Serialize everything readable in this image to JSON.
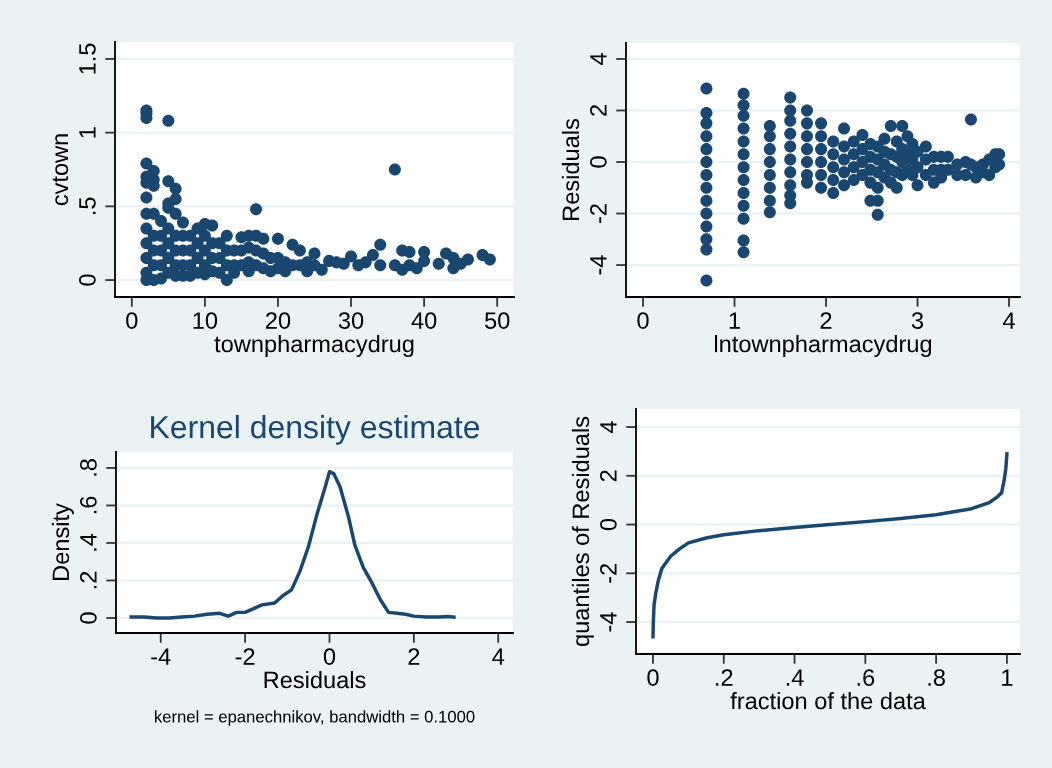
{
  "chart_data": [
    {
      "type": "scatter",
      "xlabel": "townpharmacydrug",
      "ylabel": "cvtown",
      "xlim": [
        -2.3,
        52.3
      ],
      "ylim": [
        -0.115,
        1.615
      ],
      "xticks": [
        0,
        10,
        20,
        30,
        40,
        50
      ],
      "yticks": [
        0,
        {
          "value": 0.5,
          "label": ".5"
        },
        1,
        1.5
      ],
      "grid": "y",
      "marker": "circle",
      "series": [
        {
          "color": "#1a476f",
          "x": [
            2,
            2,
            2,
            5,
            36,
            17,
            2,
            2,
            2,
            3,
            3,
            3,
            5,
            6,
            6,
            5,
            5,
            2,
            6,
            7,
            34,
            10,
            11,
            9,
            13,
            15,
            16,
            17,
            18,
            20,
            22,
            23,
            25,
            27,
            28,
            29,
            30,
            31,
            32,
            33,
            34,
            36,
            37,
            37,
            38,
            38,
            39,
            40,
            40,
            42,
            43,
            44,
            44,
            45,
            46,
            48,
            49,
            26,
            24,
            21,
            19,
            13,
            2,
            3,
            4,
            2,
            2,
            2,
            2,
            2,
            3,
            3,
            3,
            3,
            4,
            4,
            4,
            4,
            5,
            5,
            5,
            5,
            6,
            6,
            6,
            6,
            7,
            7,
            7,
            7,
            8,
            8,
            8,
            8,
            9,
            9,
            9,
            10,
            10,
            10,
            10,
            11,
            11,
            11,
            12,
            12,
            12,
            13,
            13,
            14,
            14,
            14,
            15,
            15,
            16,
            16,
            16,
            17,
            17,
            18,
            18,
            19,
            20,
            20,
            21,
            22,
            23,
            24,
            25
          ],
          "values": [
            1.15,
            1.13,
            1.1,
            1.08,
            0.75,
            0.48,
            0.79,
            0.7,
            0.66,
            0.74,
            0.68,
            0.64,
            0.67,
            0.62,
            0.55,
            0.52,
            0.49,
            0.56,
            0.45,
            0.39,
            0.24,
            0.38,
            0.37,
            0.35,
            0.3,
            0.29,
            0.3,
            0.3,
            0.28,
            0.28,
            0.24,
            0.2,
            0.18,
            0.13,
            0.12,
            0.11,
            0.16,
            0.1,
            0.12,
            0.17,
            0.1,
            0.1,
            0.2,
            0.07,
            0.19,
            0.1,
            0.08,
            0.19,
            0.13,
            0.11,
            0.18,
            0.15,
            0.08,
            0.11,
            0.14,
            0.17,
            0.14,
            0.07,
            0.06,
            0.06,
            0.06,
            0.0,
            0.0,
            0.0,
            0.01,
            0.45,
            0.35,
            0.25,
            0.15,
            0.05,
            0.45,
            0.3,
            0.2,
            0.1,
            0.4,
            0.3,
            0.2,
            0.1,
            0.35,
            0.25,
            0.15,
            0.05,
            0.3,
            0.2,
            0.1,
            0.03,
            0.3,
            0.2,
            0.1,
            0.03,
            0.3,
            0.2,
            0.1,
            0.03,
            0.25,
            0.15,
            0.05,
            0.3,
            0.2,
            0.1,
            0.04,
            0.25,
            0.15,
            0.06,
            0.25,
            0.15,
            0.05,
            0.2,
            0.1,
            0.2,
            0.1,
            0.05,
            0.2,
            0.1,
            0.22,
            0.12,
            0.06,
            0.2,
            0.1,
            0.18,
            0.08,
            0.15,
            0.15,
            0.08,
            0.12,
            0.1,
            0.1,
            0.12,
            0.1
          ]
        }
      ]
    },
    {
      "type": "scatter",
      "xlabel": "lntownpharmacydrug",
      "ylabel": "Residuals",
      "xlim": [
        -0.186,
        4.12
      ],
      "ylim": [
        -5.24,
        4.62
      ],
      "xticks": [
        0,
        1,
        2,
        3,
        4
      ],
      "yticks": [
        -4,
        -2,
        0,
        2,
        4
      ],
      "grid": "y",
      "marker": "circle",
      "series": [
        {
          "color": "#1a476f",
          "x": [
            0.693,
            0.693,
            0.693,
            0.693,
            0.693,
            0.693,
            0.693,
            0.693,
            0.693,
            0.693,
            0.693,
            0.693,
            0.693,
            0.693,
            1.099,
            1.099,
            1.099,
            1.099,
            1.099,
            1.099,
            1.099,
            1.099,
            1.099,
            1.099,
            1.099,
            1.099,
            1.099,
            1.386,
            1.386,
            1.386,
            1.386,
            1.386,
            1.386,
            1.386,
            1.386,
            1.609,
            1.609,
            1.609,
            1.609,
            1.609,
            1.609,
            1.609,
            1.609,
            1.609,
            1.609,
            1.792,
            1.792,
            1.792,
            1.792,
            1.792,
            1.792,
            1.792,
            1.946,
            1.946,
            1.946,
            1.946,
            1.946,
            1.946,
            2.079,
            2.079,
            2.079,
            2.079,
            2.079,
            2.197,
            2.197,
            2.197,
            2.197,
            2.197,
            2.303,
            2.303,
            2.303,
            2.303,
            2.398,
            2.398,
            2.398,
            2.398,
            2.485,
            2.485,
            2.485,
            2.485,
            2.485,
            2.565,
            2.565,
            2.565,
            2.565,
            2.565,
            2.565,
            2.639,
            2.639,
            2.639,
            2.639,
            2.708,
            2.708,
            2.708,
            2.708,
            2.773,
            2.773,
            2.773,
            2.773,
            2.833,
            2.833,
            2.833,
            2.833,
            2.89,
            2.89,
            2.89,
            2.944,
            2.944,
            2.944,
            3.0,
            3.0,
            3.0,
            3.091,
            3.091,
            3.091,
            3.178,
            3.178,
            3.178,
            3.258,
            3.258,
            3.258,
            3.332,
            3.332,
            3.434,
            3.434,
            3.526,
            3.526,
            3.584,
            3.584,
            3.638,
            3.638,
            3.714,
            3.714,
            3.784,
            3.784,
            3.85,
            3.85,
            3.892,
            3.892
          ],
          "values": [
            2.85,
            1.9,
            1.5,
            1.0,
            0.5,
            0,
            -0.5,
            -1,
            -1.5,
            -2,
            -2.5,
            -3,
            -3.4,
            -4.6,
            2.65,
            2.2,
            1.8,
            1.3,
            0.8,
            0.3,
            -0.2,
            -0.7,
            -1.2,
            -1.7,
            -2.2,
            -3.05,
            -3.5,
            1.4,
            1.0,
            0.5,
            0,
            -0.5,
            -1.0,
            -1.5,
            -1.95,
            2.5,
            2.0,
            1.6,
            1.1,
            0.6,
            0.1,
            -0.4,
            -0.9,
            -1.3,
            -1.6,
            2.0,
            1.5,
            1.0,
            0.5,
            0,
            -0.5,
            -0.8,
            1.5,
            1.0,
            0.5,
            0,
            -0.5,
            -1.0,
            0.8,
            0.3,
            -0.2,
            -0.7,
            -1.2,
            1.3,
            0.6,
            0.1,
            -0.4,
            -0.9,
            0.8,
            0.3,
            -0.2,
            -0.7,
            1.05,
            0.5,
            0,
            -0.5,
            0.7,
            0.2,
            -0.3,
            -0.8,
            -1.5,
            0.6,
            0.1,
            -0.4,
            -1.0,
            -1.5,
            -2.05,
            0.9,
            0.4,
            -0.1,
            -0.6,
            1.4,
            0.3,
            -0.3,
            -0.8,
            0.8,
            0.2,
            -0.4,
            -1.0,
            1.4,
            0.5,
            0,
            -0.5,
            1.0,
            0.3,
            -0.3,
            0.7,
            0.1,
            -0.5,
            0.4,
            -0.2,
            -0.9,
            0.6,
            0.1,
            -0.5,
            0.2,
            -0.3,
            -0.8,
            0.2,
            -0.3,
            -0.6,
            0.2,
            -0.3,
            -0.1,
            -0.5,
            0.0,
            -0.5,
            1.65,
            -0.1,
            -0.2,
            -0.6,
            -0.1,
            -0.4,
            0.1,
            -0.5,
            0.3,
            -0.2,
            0.3,
            -0.1
          ]
        }
      ]
    },
    {
      "type": "line",
      "title": "Kernel density estimate",
      "xlabel": "Residuals",
      "ylabel": "Density",
      "xlim": [
        -5.06,
        4.35
      ],
      "ylim": [
        -0.08,
        0.885
      ],
      "xticks": [
        -4,
        -2,
        0,
        2,
        4
      ],
      "yticks": [
        0,
        {
          "value": 0.2,
          "label": ".2"
        },
        {
          "value": 0.4,
          "label": ".4"
        },
        {
          "value": 0.6,
          "label": ".6"
        },
        {
          "value": 0.8,
          "label": ".8"
        }
      ],
      "grid": "y",
      "annotations": [
        "kernel = epanechnikov, bandwidth = 0.1000"
      ],
      "series": [
        {
          "color": "#1a476f",
          "x": [
            -4.7,
            -4.4,
            -4.1,
            -3.8,
            -3.5,
            -3.2,
            -2.9,
            -2.6,
            -2.4,
            -2.2,
            -2.0,
            -1.8,
            -1.6,
            -1.3,
            -1.1,
            -0.9,
            -0.7,
            -0.5,
            -0.3,
            -0.1,
            0.0,
            0.1,
            0.25,
            0.45,
            0.6,
            0.8,
            1.0,
            1.2,
            1.4,
            1.6,
            1.8,
            2.0,
            2.3,
            2.6,
            2.8,
            2.95
          ],
          "values": [
            0.005,
            0.005,
            0.0,
            0.0,
            0.005,
            0.01,
            0.02,
            0.025,
            0.01,
            0.03,
            0.03,
            0.05,
            0.07,
            0.08,
            0.12,
            0.15,
            0.25,
            0.38,
            0.55,
            0.7,
            0.78,
            0.77,
            0.7,
            0.54,
            0.39,
            0.27,
            0.19,
            0.1,
            0.03,
            0.025,
            0.02,
            0.01,
            0.005,
            0.005,
            0.008,
            0.005
          ]
        }
      ]
    },
    {
      "type": "line",
      "xlabel": "fraction of the data",
      "ylabel": "quantiles of Residuals",
      "xlim": [
        -0.048,
        1.037
      ],
      "ylim": [
        -5.31,
        4.74
      ],
      "xticks": [
        0,
        {
          "value": 0.2,
          "label": ".2"
        },
        {
          "value": 0.4,
          "label": ".4"
        },
        {
          "value": 0.6,
          "label": ".6"
        },
        {
          "value": 0.8,
          "label": ".8"
        },
        1
      ],
      "yticks": [
        -4,
        -2,
        0,
        2,
        4
      ],
      "grid": "y",
      "series": [
        {
          "color": "#1a476f",
          "x": [
            0.0,
            0.001,
            0.003,
            0.008,
            0.015,
            0.025,
            0.05,
            0.075,
            0.1,
            0.15,
            0.2,
            0.3,
            0.4,
            0.5,
            0.6,
            0.7,
            0.8,
            0.9,
            0.95,
            0.97,
            0.985,
            0.992,
            0.997,
            1.0
          ],
          "values": [
            -4.6,
            -4.0,
            -3.3,
            -2.8,
            -2.3,
            -1.8,
            -1.3,
            -1.0,
            -0.75,
            -0.55,
            -0.42,
            -0.25,
            -0.12,
            0.0,
            0.12,
            0.25,
            0.4,
            0.65,
            0.9,
            1.1,
            1.3,
            1.8,
            2.3,
            2.9
          ]
        }
      ]
    }
  ]
}
